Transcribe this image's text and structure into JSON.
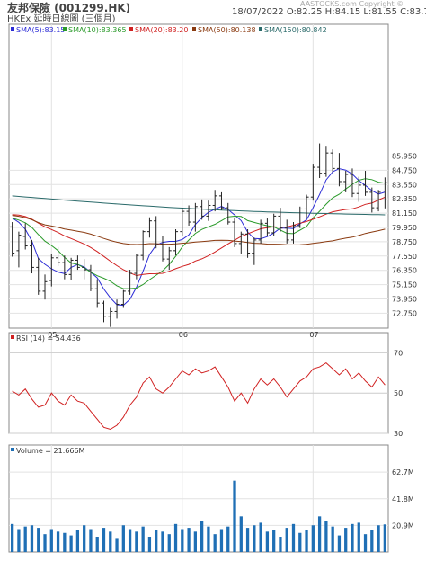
{
  "header": {
    "title": "友邦保險 (001299.HK)",
    "subtitle": "HKEx 延時日線圖 (三個月)",
    "quote": "18/07/2022    O:82.25    H:84.15    L:81.55    C:83.7",
    "copyright": "AASTOCKS.com Copyright ©"
  },
  "chart_data": [
    {
      "type": "candlestick",
      "panel": "price",
      "ylim": [
        71.5,
        97.0
      ],
      "yticks": [
        "85.950",
        "84.750",
        "83.550",
        "82.350",
        "81.150",
        "79.950",
        "78.750",
        "77.550",
        "76.350",
        "75.150",
        "73.950",
        "72.750"
      ],
      "xticks": [
        "05",
        "06",
        "07"
      ],
      "legend": [
        {
          "label": "SMA(5):83.15",
          "color": "#2b2bd6"
        },
        {
          "label": "SMA(10):83.365",
          "color": "#2a9a2a"
        },
        {
          "label": "SMA(20):83.20",
          "color": "#d02020"
        },
        {
          "label": "SMA(50):80.138",
          "color": "#8a3a10"
        },
        {
          "label": "SMA(150):80.842",
          "color": "#2a6a6a"
        }
      ],
      "ohlc": [
        [
          80.0,
          80.4,
          77.5,
          77.8
        ],
        [
          78.0,
          79.6,
          76.6,
          79.3
        ],
        [
          79.2,
          80.3,
          78.1,
          78.4
        ],
        [
          78.4,
          78.9,
          76.1,
          76.6
        ],
        [
          76.6,
          77.4,
          74.3,
          74.6
        ],
        [
          74.6,
          76.0,
          73.9,
          75.4
        ],
        [
          75.5,
          77.7,
          75.0,
          77.4
        ],
        [
          77.4,
          78.3,
          76.7,
          77.0
        ],
        [
          77.0,
          77.6,
          75.6,
          76.0
        ],
        [
          76.0,
          77.4,
          75.5,
          77.2
        ],
        [
          77.2,
          77.6,
          76.4,
          76.6
        ],
        [
          76.6,
          77.3,
          75.6,
          76.4
        ],
        [
          76.4,
          76.8,
          74.6,
          74.8
        ],
        [
          74.8,
          75.6,
          73.2,
          73.6
        ],
        [
          73.6,
          73.8,
          72.0,
          72.5
        ],
        [
          72.5,
          73.2,
          71.6,
          72.9
        ],
        [
          72.9,
          73.9,
          72.3,
          73.5
        ],
        [
          73.5,
          74.7,
          73.2,
          74.6
        ],
        [
          74.6,
          76.4,
          74.3,
          76.1
        ],
        [
          76.1,
          77.7,
          75.6,
          77.6
        ],
        [
          77.6,
          79.7,
          77.2,
          79.6
        ],
        [
          79.6,
          80.8,
          79.1,
          80.5
        ],
        [
          80.5,
          80.9,
          78.2,
          78.5
        ],
        [
          78.5,
          79.2,
          77.1,
          77.3
        ],
        [
          77.3,
          78.3,
          76.4,
          78.0
        ],
        [
          78.0,
          79.8,
          77.6,
          79.6
        ],
        [
          79.6,
          81.6,
          79.2,
          81.3
        ],
        [
          81.3,
          81.8,
          80.1,
          80.4
        ],
        [
          80.4,
          82.0,
          79.6,
          81.7
        ],
        [
          81.7,
          82.3,
          80.6,
          80.9
        ],
        [
          80.9,
          82.2,
          80.5,
          81.8
        ],
        [
          81.8,
          83.1,
          81.3,
          82.6
        ],
        [
          82.6,
          82.9,
          81.4,
          81.6
        ],
        [
          81.6,
          82.0,
          80.2,
          80.4
        ],
        [
          80.4,
          80.7,
          78.3,
          78.6
        ],
        [
          78.6,
          79.6,
          77.7,
          79.4
        ],
        [
          79.4,
          79.8,
          77.4,
          77.8
        ],
        [
          77.8,
          79.1,
          76.8,
          78.9
        ],
        [
          78.9,
          80.6,
          78.6,
          80.3
        ],
        [
          80.3,
          80.7,
          79.2,
          79.5
        ],
        [
          79.5,
          81.1,
          79.2,
          80.9
        ],
        [
          80.9,
          81.6,
          79.6,
          79.9
        ],
        [
          79.9,
          80.6,
          78.6,
          78.9
        ],
        [
          78.9,
          80.4,
          78.6,
          80.1
        ],
        [
          80.1,
          81.7,
          79.9,
          81.5
        ],
        [
          81.5,
          82.7,
          80.7,
          82.5
        ],
        [
          82.5,
          85.3,
          82.2,
          85.0
        ],
        [
          85.0,
          87.0,
          84.1,
          84.5
        ],
        [
          84.5,
          86.8,
          84.2,
          86.2
        ],
        [
          86.2,
          86.5,
          84.6,
          84.9
        ],
        [
          84.9,
          86.2,
          83.4,
          83.8
        ],
        [
          83.8,
          84.7,
          82.9,
          84.4
        ],
        [
          84.4,
          84.9,
          82.5,
          82.8
        ],
        [
          82.8,
          84.2,
          82.1,
          83.5
        ],
        [
          83.5,
          84.7,
          82.6,
          82.9
        ],
        [
          82.9,
          83.3,
          81.2,
          81.6
        ],
        [
          81.6,
          83.1,
          81.3,
          82.9
        ],
        [
          82.25,
          84.15,
          81.55,
          83.7
        ]
      ]
    },
    {
      "type": "line",
      "panel": "rsi",
      "legend": [
        {
          "label": "RSI (14) = 54.436",
          "color": "#d02020"
        }
      ],
      "ylim": [
        30,
        80
      ],
      "yticks": [
        "70",
        "50",
        "30"
      ],
      "values": [
        51,
        49,
        52,
        47,
        43,
        44,
        50,
        46,
        44,
        49,
        46,
        45,
        41,
        37,
        33,
        32,
        34,
        38,
        44,
        48,
        55,
        58,
        52,
        50,
        53,
        57,
        61,
        59,
        62,
        60,
        61,
        63,
        58,
        53,
        46,
        50,
        45,
        52,
        57,
        54,
        57,
        53,
        48,
        52,
        56,
        58,
        62,
        63,
        65,
        62,
        59,
        62,
        57,
        60,
        56,
        53,
        58,
        54
      ]
    },
    {
      "type": "bar",
      "panel": "volume",
      "legend": [
        {
          "label": "Volume = 21.666M",
          "color": "#1f6fb5"
        }
      ],
      "ylim": [
        0,
        84
      ],
      "yticks": [
        "62.7M",
        "41.8M",
        "20.9M"
      ],
      "values": [
        22,
        18,
        20,
        21,
        19,
        14,
        18,
        16,
        15,
        13,
        17,
        21,
        18,
        12,
        19,
        16,
        11,
        21,
        18,
        16,
        20,
        12,
        17,
        16,
        14,
        22,
        18,
        19,
        16,
        24,
        20,
        14,
        18,
        20,
        56,
        28,
        19,
        21,
        23,
        16,
        17,
        12,
        19,
        22,
        15,
        17,
        21,
        28,
        24,
        20,
        13,
        19,
        22,
        23,
        14,
        17,
        21,
        21.7
      ]
    }
  ]
}
